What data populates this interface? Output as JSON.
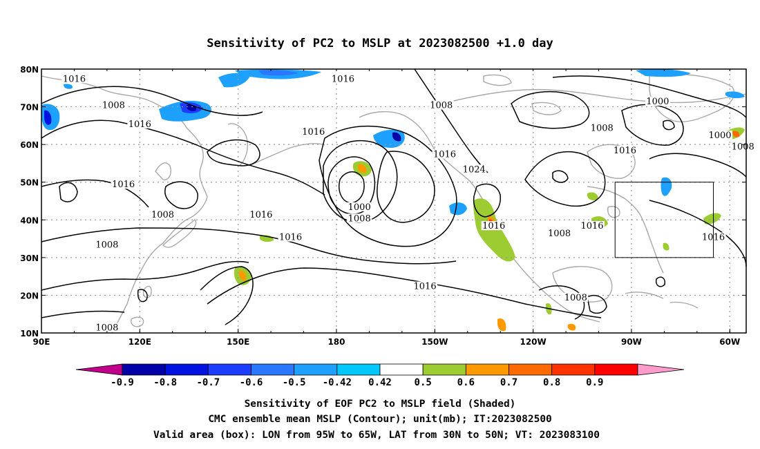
{
  "title": "Sensitivity of PC2 to MSLP at 2023082500 +1.0 day",
  "map": {
    "lon_range": [
      90,
      305
    ],
    "lat_range": [
      10,
      80
    ],
    "x_ticks": [
      {
        "lon": 90,
        "label": "90E"
      },
      {
        "lon": 120,
        "label": "120E"
      },
      {
        "lon": 150,
        "label": "150E"
      },
      {
        "lon": 180,
        "label": "180"
      },
      {
        "lon": 210,
        "label": "150W"
      },
      {
        "lon": 240,
        "label": "120W"
      },
      {
        "lon": 270,
        "label": "90W"
      },
      {
        "lon": 300,
        "label": "60W"
      }
    ],
    "y_ticks": [
      {
        "lat": 80,
        "label": "80N"
      },
      {
        "lat": 70,
        "label": "70N"
      },
      {
        "lat": 60,
        "label": "60N"
      },
      {
        "lat": 50,
        "label": "50N"
      },
      {
        "lat": 40,
        "label": "40N"
      },
      {
        "lat": 30,
        "label": "30N"
      },
      {
        "lat": 20,
        "label": "20N"
      },
      {
        "lat": 10,
        "label": "10N"
      }
    ],
    "grid": true,
    "valid_box": {
      "lon": [
        265,
        295
      ],
      "lat": [
        30,
        50
      ]
    },
    "contour_labels": [
      {
        "lon": 213,
        "lat": 57,
        "text": "1016"
      },
      {
        "lon": 100,
        "lat": 77,
        "text": "1016"
      },
      {
        "lon": 182,
        "lat": 77,
        "text": "1016"
      },
      {
        "lon": 212,
        "lat": 70,
        "text": "1008"
      },
      {
        "lon": 112,
        "lat": 70,
        "text": "1008"
      },
      {
        "lon": 120,
        "lat": 65,
        "text": "1016"
      },
      {
        "lon": 173,
        "lat": 63,
        "text": "1016"
      },
      {
        "lon": 222,
        "lat": 53,
        "text": "1024"
      },
      {
        "lon": 261,
        "lat": 64,
        "text": "1008"
      },
      {
        "lon": 278,
        "lat": 71,
        "text": "1000"
      },
      {
        "lon": 297,
        "lat": 62,
        "text": "1000"
      },
      {
        "lon": 304,
        "lat": 59,
        "text": "1008"
      },
      {
        "lon": 268,
        "lat": 58,
        "text": "1016"
      },
      {
        "lon": 115,
        "lat": 49,
        "text": "1016"
      },
      {
        "lon": 187,
        "lat": 43,
        "text": "1000"
      },
      {
        "lon": 187,
        "lat": 40,
        "text": "1008"
      },
      {
        "lon": 127,
        "lat": 41,
        "text": "1008"
      },
      {
        "lon": 157,
        "lat": 41,
        "text": "1016"
      },
      {
        "lon": 110,
        "lat": 33,
        "text": "1008"
      },
      {
        "lon": 166,
        "lat": 35,
        "text": "1016"
      },
      {
        "lon": 228,
        "lat": 38,
        "text": "1016"
      },
      {
        "lon": 248,
        "lat": 36,
        "text": "1008"
      },
      {
        "lon": 258,
        "lat": 38,
        "text": "1016"
      },
      {
        "lon": 295,
        "lat": 35,
        "text": "1016"
      },
      {
        "lon": 207,
        "lat": 22,
        "text": "1016"
      },
      {
        "lon": 253,
        "lat": 19,
        "text": "1008"
      },
      {
        "lon": 110,
        "lat": 11,
        "text": "1008"
      }
    ]
  },
  "colorbar": {
    "levels": [
      "-0.9",
      "-0.8",
      "-0.7",
      "-0.6",
      "-0.5",
      "-0.42",
      "0.42",
      "0.5",
      "0.6",
      "0.7",
      "0.8",
      "0.9"
    ],
    "colors": [
      "#c0008a",
      "#0000a8",
      "#0012e0",
      "#1c3dff",
      "#2a78ff",
      "#1ea0ff",
      "#00c8ff",
      "#ffffff",
      "#9ccc32",
      "#ff9900",
      "#ff6a00",
      "#ff3300",
      "#ff0000",
      "#ff9ccc"
    ]
  },
  "caption": {
    "line1": "Sensitivity of EOF PC2 to MSLP field (Shaded)",
    "line2": "CMC ensemble mean MSLP (Contour); unit(mb); IT:2023082500",
    "line3": "Valid area (box): LON from 95W to 65W, LAT from 30N to 50N; VT: 2023083100"
  }
}
